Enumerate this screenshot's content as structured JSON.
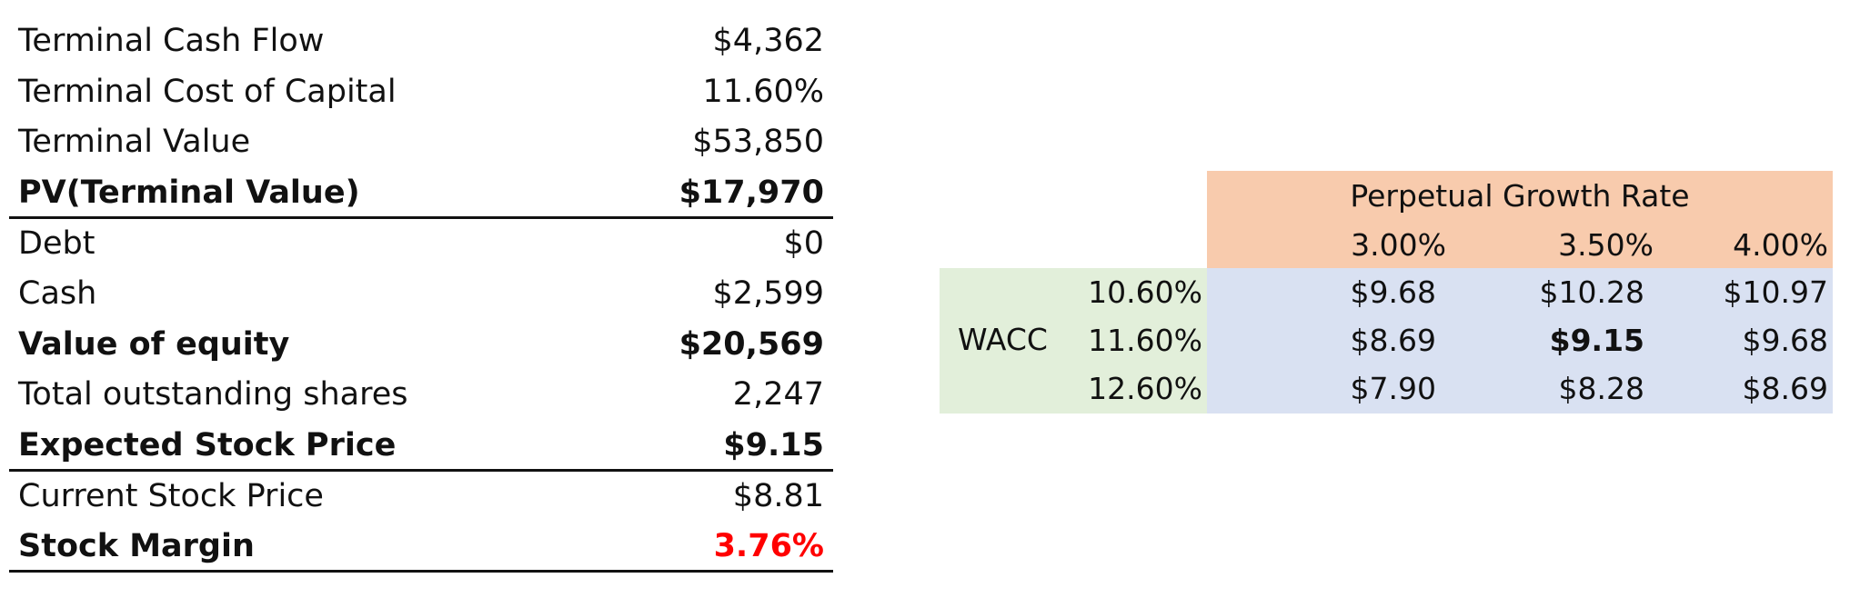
{
  "colors": {
    "header_orange": "#f8cbad",
    "wacc_green": "#e2efda",
    "grid_blue": "#d9e1f2",
    "margin_red": "#ff0000",
    "rule_black": "#111111"
  },
  "valuation": {
    "rows": [
      {
        "label": "Terminal Cash Flow",
        "value": "$4,362"
      },
      {
        "label": "Terminal Cost of Capital",
        "value": "11.60%"
      },
      {
        "label": "Terminal Value",
        "value": "$53,850"
      },
      {
        "label": "PV(Terminal Value)",
        "value": "$17,970"
      },
      {
        "label": "Debt",
        "value": "$0"
      },
      {
        "label": "Cash",
        "value": "$2,599"
      },
      {
        "label": "Value of equity",
        "value": "$20,569"
      },
      {
        "label": "Total outstanding shares",
        "value": "2,247"
      },
      {
        "label": "Expected Stock Price",
        "value": "$9.15"
      },
      {
        "label": "Current Stock Price",
        "value": "$8.81"
      },
      {
        "label": "Stock Margin",
        "value": "3.76%"
      }
    ]
  },
  "sensitivity": {
    "column_header": "Perpetual Growth Rate",
    "row_header": "WACC",
    "growth_rates": [
      "3.00%",
      "3.50%",
      "4.00%"
    ],
    "wacc_rates": [
      "10.60%",
      "11.60%",
      "12.60%"
    ],
    "prices": [
      [
        "$9.68",
        "$10.28",
        "$10.97"
      ],
      [
        "$8.69",
        "$9.15",
        "$9.68"
      ],
      [
        "$7.90",
        "$8.28",
        "$8.69"
      ]
    ]
  }
}
